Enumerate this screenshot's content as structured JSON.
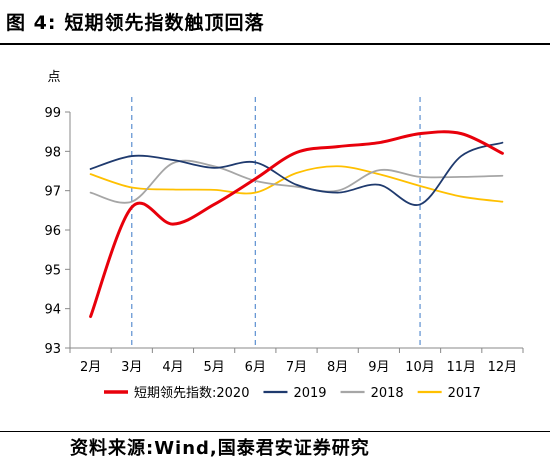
{
  "figure": {
    "label": "图 4:",
    "title": "短期领先指数触顶回落",
    "source": "资料来源:Wind,国泰君安证券研究"
  },
  "chart_data": {
    "type": "line",
    "unit": "点",
    "categories": [
      "2月",
      "3月",
      "4月",
      "5月",
      "6月",
      "7月",
      "8月",
      "9月",
      "10月",
      "11月",
      "12月"
    ],
    "ylim": [
      93,
      99
    ],
    "yticks": [
      "93",
      "94",
      "95",
      "96",
      "97",
      "98",
      "99"
    ],
    "reference_lines": [
      "3月",
      "6月",
      "10月"
    ],
    "grid": false,
    "legend_position": "bottom",
    "legend_prefix": "短期领先指数:",
    "series": [
      {
        "name": "2020",
        "color": "#e8000b",
        "width": 3,
        "values": [
          93.8,
          96.58,
          96.15,
          96.65,
          97.3,
          97.97,
          98.12,
          98.22,
          98.45,
          98.45,
          97.95
        ]
      },
      {
        "name": "2019",
        "color": "#1f3a6e",
        "width": 1.8,
        "values": [
          97.55,
          97.88,
          97.78,
          97.58,
          97.72,
          97.15,
          96.95,
          97.15,
          96.65,
          97.88,
          98.22
        ]
      },
      {
        "name": "2018",
        "color": "#a6a6a6",
        "width": 1.8,
        "values": [
          96.95,
          96.72,
          97.7,
          97.62,
          97.25,
          97.1,
          97.0,
          97.52,
          97.35,
          97.35,
          97.38
        ]
      },
      {
        "name": "2017",
        "color": "#ffc000",
        "width": 1.8,
        "values": [
          97.42,
          97.08,
          97.03,
          97.02,
          96.95,
          97.45,
          97.62,
          97.42,
          97.12,
          96.85,
          96.72
        ]
      }
    ]
  }
}
